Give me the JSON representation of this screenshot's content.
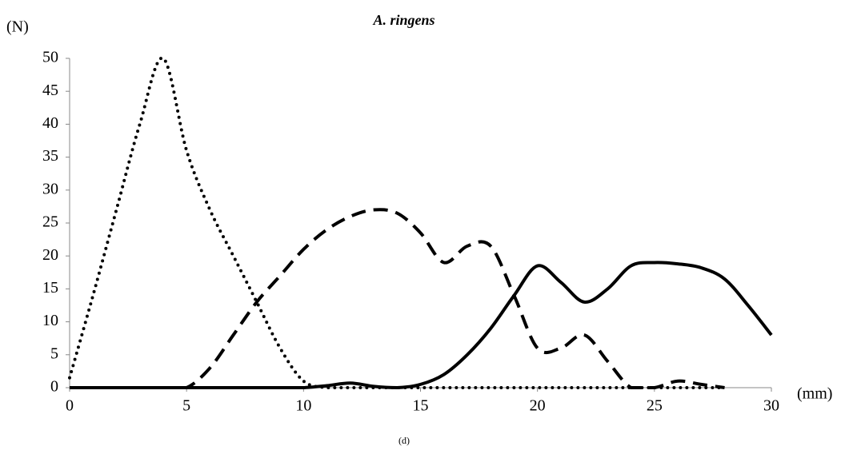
{
  "chart_data": {
    "type": "line",
    "title": "A. ringens",
    "y_label": "(N)",
    "x_label": "(mm)",
    "caption": "(d)",
    "x": [
      0,
      1,
      2,
      3,
      4,
      5,
      6,
      7,
      8,
      9,
      10,
      11,
      12,
      13,
      14,
      15,
      16,
      17,
      18,
      19,
      20,
      21,
      22,
      23,
      24,
      25,
      26,
      27,
      28,
      29,
      30
    ],
    "series": [
      {
        "color": "#000000",
        "style": "dotted",
        "values": [
          1.5,
          14,
          27,
          40,
          50,
          36,
          27,
          20,
          13,
          6,
          1,
          0,
          0,
          0,
          0,
          0,
          0,
          0,
          0,
          0,
          0,
          0,
          0,
          0,
          0,
          0,
          0,
          0,
          0,
          null,
          null
        ]
      },
      {
        "color": "#000000",
        "style": "dashed",
        "values": [
          0,
          0,
          0,
          0,
          0,
          0,
          3,
          8,
          13,
          17,
          21,
          24,
          26,
          27,
          26.5,
          23.5,
          19,
          21.5,
          21.5,
          14,
          6,
          6,
          8,
          4,
          0,
          0,
          1,
          0.5,
          0,
          null,
          null
        ]
      },
      {
        "color": "#000000",
        "style": "solid",
        "values": [
          0,
          0,
          0,
          0,
          0,
          0,
          0,
          0,
          0,
          0,
          0,
          0.3,
          0.7,
          0.2,
          0,
          0.5,
          2,
          5,
          9,
          14,
          18.5,
          16,
          13,
          15,
          18.5,
          19,
          18.8,
          18.2,
          16.5,
          12.5,
          8
        ]
      }
    ],
    "xlim": [
      0,
      30
    ],
    "xticks": [
      0,
      5,
      10,
      15,
      20,
      25,
      30
    ],
    "ylim": [
      0,
      50
    ],
    "yticks": [
      0,
      5,
      10,
      15,
      20,
      25,
      30,
      35,
      40,
      45,
      50
    ]
  }
}
